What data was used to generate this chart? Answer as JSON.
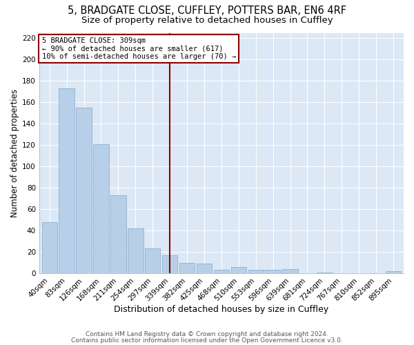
{
  "title1": "5, BRADGATE CLOSE, CUFFLEY, POTTERS BAR, EN6 4RF",
  "title2": "Size of property relative to detached houses in Cuffley",
  "xlabel": "Distribution of detached houses by size in Cuffley",
  "ylabel": "Number of detached properties",
  "bar_labels": [
    "40sqm",
    "83sqm",
    "126sqm",
    "168sqm",
    "211sqm",
    "254sqm",
    "297sqm",
    "339sqm",
    "382sqm",
    "425sqm",
    "468sqm",
    "510sqm",
    "553sqm",
    "596sqm",
    "639sqm",
    "681sqm",
    "724sqm",
    "767sqm",
    "810sqm",
    "852sqm",
    "895sqm"
  ],
  "bar_values": [
    48,
    173,
    155,
    121,
    73,
    42,
    23,
    17,
    10,
    9,
    3,
    6,
    3,
    3,
    4,
    0,
    1,
    0,
    0,
    0,
    2
  ],
  "bar_color": "#b8cfe8",
  "bar_edge_color": "#7fa8cc",
  "vline_x": 7.0,
  "vline_color": "#8b0000",
  "annotation_line1": "5 BRADGATE CLOSE: 309sqm",
  "annotation_line2": "← 90% of detached houses are smaller (617)",
  "annotation_line3": "10% of semi-detached houses are larger (70) →",
  "annotation_box_edgecolor": "#8b0000",
  "annotation_box_facecolor": "white",
  "ylim": [
    0,
    225
  ],
  "yticks": [
    0,
    20,
    40,
    60,
    80,
    100,
    120,
    140,
    160,
    180,
    200,
    220
  ],
  "footer1": "Contains HM Land Registry data © Crown copyright and database right 2024.",
  "footer2": "Contains public sector information licensed under the Open Government Licence v3.0.",
  "bg_color": "#ffffff",
  "plot_bg_color": "#dce8f5",
  "grid_color": "#ffffff",
  "title1_fontsize": 10.5,
  "title2_fontsize": 9.5,
  "xlabel_fontsize": 9,
  "ylabel_fontsize": 8.5,
  "tick_fontsize": 7.5,
  "footer_fontsize": 6.5
}
